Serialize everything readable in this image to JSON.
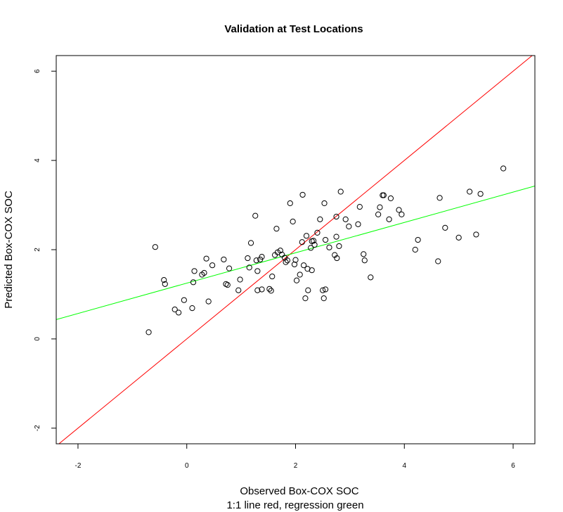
{
  "chart_data": {
    "type": "scatter",
    "title": "Validation at Test Locations",
    "xlabel": "Observed Box-COX SOC",
    "xlabel_sub": "1:1 line red, regression green",
    "ylabel": "Predicted Box-COX SOC",
    "xlim": [
      -2.4,
      6.4
    ],
    "ylim": [
      -2.35,
      6.35
    ],
    "x_ticks": [
      -2,
      0,
      2,
      4,
      6
    ],
    "y_ticks": [
      -2,
      0,
      2,
      4,
      6
    ],
    "grid": false,
    "points": [
      [
        -0.7,
        0.15
      ],
      [
        -0.58,
        2.06
      ],
      [
        -0.42,
        1.32
      ],
      [
        -0.4,
        1.23
      ],
      [
        -0.22,
        0.66
      ],
      [
        -0.15,
        0.59
      ],
      [
        -0.05,
        0.87
      ],
      [
        0.1,
        0.69
      ],
      [
        0.12,
        1.27
      ],
      [
        0.14,
        1.52
      ],
      [
        0.28,
        1.44
      ],
      [
        0.32,
        1.48
      ],
      [
        0.36,
        1.8
      ],
      [
        0.4,
        0.84
      ],
      [
        0.47,
        1.65
      ],
      [
        0.68,
        1.78
      ],
      [
        0.72,
        1.23
      ],
      [
        0.75,
        1.21
      ],
      [
        0.78,
        1.58
      ],
      [
        0.95,
        1.09
      ],
      [
        0.98,
        1.33
      ],
      [
        1.12,
        1.81
      ],
      [
        1.15,
        1.6
      ],
      [
        1.18,
        2.15
      ],
      [
        1.26,
        2.76
      ],
      [
        1.28,
        1.76
      ],
      [
        1.3,
        1.52
      ],
      [
        1.3,
        1.09
      ],
      [
        1.35,
        1.78
      ],
      [
        1.38,
        1.11
      ],
      [
        1.38,
        1.84
      ],
      [
        1.52,
        1.12
      ],
      [
        1.55,
        1.08
      ],
      [
        1.57,
        1.4
      ],
      [
        1.62,
        1.88
      ],
      [
        1.65,
        2.47
      ],
      [
        1.67,
        1.94
      ],
      [
        1.72,
        1.98
      ],
      [
        1.75,
        1.89
      ],
      [
        1.8,
        1.82
      ],
      [
        1.82,
        1.72
      ],
      [
        1.85,
        1.76
      ],
      [
        1.9,
        3.04
      ],
      [
        1.95,
        2.63
      ],
      [
        1.98,
        1.67
      ],
      [
        2.0,
        1.77
      ],
      [
        2.02,
        1.31
      ],
      [
        2.08,
        1.44
      ],
      [
        2.12,
        2.17
      ],
      [
        2.13,
        3.23
      ],
      [
        2.15,
        1.65
      ],
      [
        2.18,
        0.91
      ],
      [
        2.2,
        2.31
      ],
      [
        2.22,
        1.57
      ],
      [
        2.23,
        1.09
      ],
      [
        2.28,
        2.04
      ],
      [
        2.3,
        2.19
      ],
      [
        2.3,
        1.54
      ],
      [
        2.33,
        2.2
      ],
      [
        2.35,
        2.11
      ],
      [
        2.4,
        2.38
      ],
      [
        2.45,
        2.68
      ],
      [
        2.5,
        1.09
      ],
      [
        2.52,
        0.91
      ],
      [
        2.53,
        3.04
      ],
      [
        2.55,
        2.22
      ],
      [
        2.55,
        1.11
      ],
      [
        2.62,
        2.05
      ],
      [
        2.72,
        1.88
      ],
      [
        2.75,
        2.29
      ],
      [
        2.75,
        2.74
      ],
      [
        2.76,
        1.81
      ],
      [
        2.8,
        2.08
      ],
      [
        2.83,
        3.3
      ],
      [
        2.92,
        2.68
      ],
      [
        2.98,
        2.52
      ],
      [
        3.15,
        2.57
      ],
      [
        3.18,
        2.96
      ],
      [
        3.25,
        1.9
      ],
      [
        3.27,
        1.76
      ],
      [
        3.38,
        1.38
      ],
      [
        3.52,
        2.79
      ],
      [
        3.55,
        2.95
      ],
      [
        3.6,
        3.22
      ],
      [
        3.62,
        3.22
      ],
      [
        3.72,
        2.68
      ],
      [
        3.75,
        3.15
      ],
      [
        3.9,
        2.89
      ],
      [
        3.95,
        2.79
      ],
      [
        4.2,
        2.0
      ],
      [
        4.25,
        2.22
      ],
      [
        4.62,
        1.74
      ],
      [
        4.65,
        3.16
      ],
      [
        4.75,
        2.49
      ],
      [
        5.0,
        2.27
      ],
      [
        5.2,
        3.3
      ],
      [
        5.32,
        2.34
      ],
      [
        5.4,
        3.25
      ],
      [
        5.82,
        3.82
      ]
    ],
    "lines": [
      {
        "name": "1:1 line",
        "color": "#ff0000",
        "intercept": 0,
        "slope": 1
      },
      {
        "name": "regression",
        "color": "#00ff00",
        "intercept": 1.25,
        "slope": 0.34
      }
    ]
  }
}
